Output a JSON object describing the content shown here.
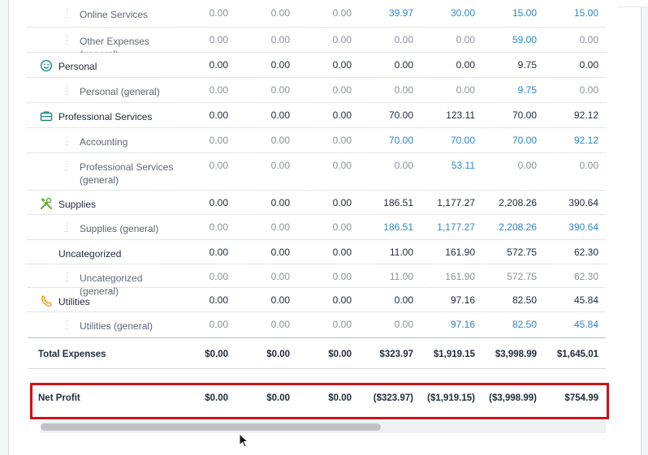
{
  "rows": [
    {
      "id": "online-services",
      "type": "child",
      "label": "Online Services",
      "values": [
        "0.00",
        "0.00",
        "0.00",
        "39.97",
        "30.00",
        "15.00",
        "15.00"
      ],
      "links": [
        false,
        false,
        false,
        true,
        true,
        true,
        true
      ]
    },
    {
      "id": "other-expenses",
      "type": "child",
      "label": "Other Expenses (general)",
      "values": [
        "0.00",
        "0.00",
        "0.00",
        "0.00",
        "0.00",
        "59.00",
        "0.00"
      ],
      "links": [
        false,
        false,
        false,
        false,
        false,
        true,
        false
      ]
    },
    {
      "id": "personal",
      "type": "parent",
      "label": "Personal",
      "icon": "smiley-icon",
      "values": [
        "0.00",
        "0.00",
        "0.00",
        "0.00",
        "0.00",
        "9.75",
        "0.00"
      ]
    },
    {
      "id": "personal-general",
      "type": "child",
      "label": "Personal (general)",
      "values": [
        "0.00",
        "0.00",
        "0.00",
        "0.00",
        "0.00",
        "9.75",
        "0.00"
      ],
      "links": [
        false,
        false,
        false,
        false,
        false,
        true,
        false
      ]
    },
    {
      "id": "professional-services",
      "type": "parent",
      "label": "Professional Services",
      "icon": "briefcase-icon",
      "values": [
        "0.00",
        "0.00",
        "0.00",
        "70.00",
        "123.11",
        "70.00",
        "92.12"
      ]
    },
    {
      "id": "accounting",
      "type": "child",
      "label": "Accounting",
      "values": [
        "0.00",
        "0.00",
        "0.00",
        "70.00",
        "70.00",
        "70.00",
        "92.12"
      ],
      "links": [
        false,
        false,
        false,
        true,
        true,
        true,
        true
      ]
    },
    {
      "id": "professional-services-general",
      "type": "child",
      "label": "Professional Services (general)",
      "values": [
        "0.00",
        "0.00",
        "0.00",
        "0.00",
        "53.11",
        "0.00",
        "0.00"
      ],
      "links": [
        false,
        false,
        false,
        false,
        true,
        false,
        false
      ]
    },
    {
      "id": "supplies",
      "type": "parent",
      "label": "Supplies",
      "icon": "tools-icon",
      "values": [
        "0.00",
        "0.00",
        "0.00",
        "186.51",
        "1,177.27",
        "2,208.26",
        "390.64"
      ]
    },
    {
      "id": "supplies-general",
      "type": "child",
      "label": "Supplies (general)",
      "values": [
        "0.00",
        "0.00",
        "0.00",
        "186.51",
        "1,177.27",
        "2,208.26",
        "390.64"
      ],
      "links": [
        false,
        false,
        false,
        true,
        true,
        true,
        true
      ]
    },
    {
      "id": "uncategorized",
      "type": "parent",
      "label": "Uncategorized",
      "values": [
        "0.00",
        "0.00",
        "0.00",
        "11.00",
        "161.90",
        "572.75",
        "62.30"
      ]
    },
    {
      "id": "uncategorized-general",
      "type": "child",
      "label": "Uncategorized (general)",
      "values": [
        "0.00",
        "0.00",
        "0.00",
        "11.00",
        "161.90",
        "572.75",
        "62.30"
      ],
      "links": [
        false,
        false,
        false,
        false,
        false,
        false,
        false
      ]
    },
    {
      "id": "utilities",
      "type": "parent",
      "label": "Utilities",
      "icon": "plug-icon",
      "values": [
        "0.00",
        "0.00",
        "0.00",
        "0.00",
        "97.16",
        "82.50",
        "45.84"
      ]
    },
    {
      "id": "utilities-general",
      "type": "child",
      "label": "Utilities (general)",
      "values": [
        "0.00",
        "0.00",
        "0.00",
        "0.00",
        "97.16",
        "82.50",
        "45.84"
      ],
      "links": [
        false,
        false,
        false,
        false,
        true,
        true,
        true
      ]
    }
  ],
  "total_expenses": {
    "label": "Total Expenses",
    "values": [
      "$0.00",
      "$0.00",
      "$0.00",
      "$323.97",
      "$1,919.15",
      "$3,998.99",
      "$1,645.01"
    ]
  },
  "net_profit": {
    "label": "Net Profit",
    "values": [
      "$0.00",
      "$0.00",
      "$0.00",
      "($323.97)",
      "($1,919.15)",
      "($3,998.99)",
      "$754.99"
    ]
  },
  "colors": {
    "link": "#2d87c8",
    "highlight": "#d0111a",
    "icon": "#1a8a7a",
    "supplies_icon": "#6aa83a",
    "utilities_icon": "#e8a020"
  }
}
